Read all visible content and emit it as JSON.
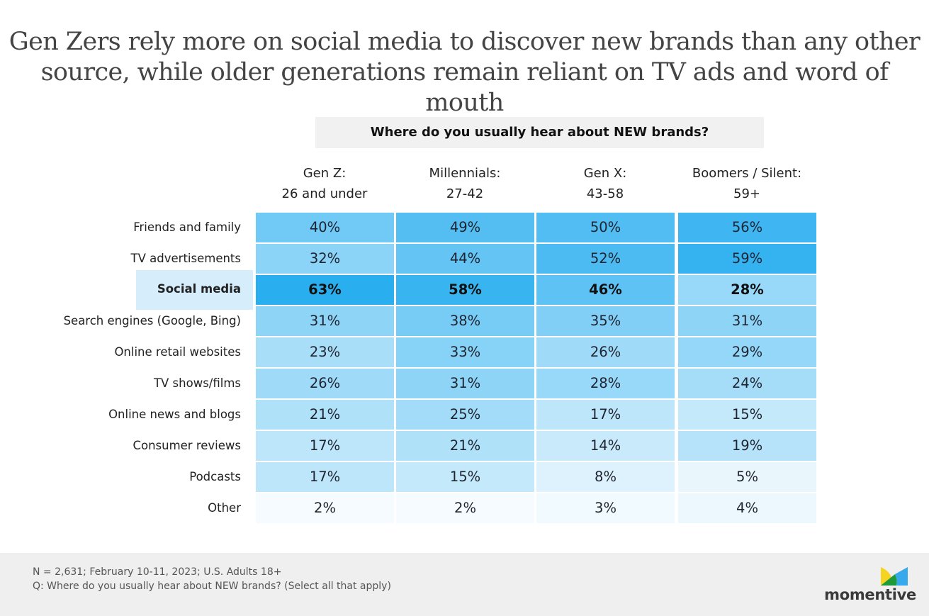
{
  "title": {
    "line1": "Gen Zers rely more on social media to discover new brands than any other",
    "line2": "source, while older generations remain reliant on TV ads and word of mouth"
  },
  "question_banner": "Where do you usually hear about NEW brands?",
  "chart_data": {
    "type": "heatmap",
    "title": "Where do you usually hear about NEW brands?",
    "columns": [
      {
        "name": "Gen Z:",
        "sub": "26 and under"
      },
      {
        "name": "Millennials:",
        "sub": "27-42"
      },
      {
        "name": "Gen X:",
        "sub": "43-58"
      },
      {
        "name": "Boomers / Silent:",
        "sub": "59+"
      }
    ],
    "rows": [
      {
        "label": "Friends and family",
        "values": [
          40,
          49,
          50,
          56
        ],
        "highlight": false
      },
      {
        "label": "TV advertisements",
        "values": [
          32,
          44,
          52,
          59
        ],
        "highlight": false
      },
      {
        "label": "Social media",
        "values": [
          63,
          58,
          46,
          28
        ],
        "highlight": true
      },
      {
        "label": "Search engines (Google, Bing)",
        "values": [
          31,
          38,
          35,
          31
        ],
        "highlight": false
      },
      {
        "label": "Online retail websites",
        "values": [
          23,
          33,
          26,
          29
        ],
        "highlight": false
      },
      {
        "label": "TV shows/films",
        "values": [
          26,
          31,
          28,
          24
        ],
        "highlight": false
      },
      {
        "label": "Online news and blogs",
        "values": [
          21,
          25,
          17,
          15
        ],
        "highlight": false
      },
      {
        "label": "Consumer reviews",
        "values": [
          17,
          21,
          14,
          19
        ],
        "highlight": false
      },
      {
        "label": "Podcasts",
        "values": [
          17,
          15,
          8,
          5
        ],
        "highlight": false
      },
      {
        "label": "Other",
        "values": [
          2,
          2,
          3,
          4
        ],
        "highlight": false
      }
    ],
    "value_suffix": "%",
    "color_scale": {
      "low": "#ffffff",
      "high": "#29aef0",
      "domain": [
        0,
        63
      ]
    }
  },
  "footer": {
    "note1": "N = 2,631; February 10-11, 2023; U.S. Adults 18+",
    "note2": "Q: Where do you usually hear about NEW brands? (Select all that apply)"
  },
  "logo": {
    "text": "momentive",
    "colors": {
      "yellow": "#f5d321",
      "green": "#1e9a3c",
      "blue": "#35a9ec"
    }
  }
}
